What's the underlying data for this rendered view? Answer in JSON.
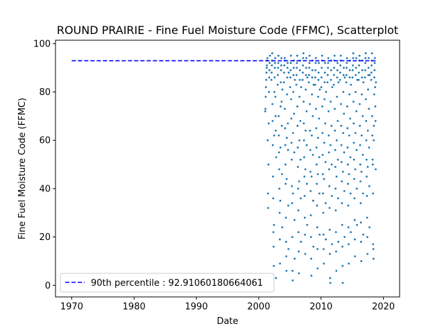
{
  "chart_data": {
    "type": "scatter",
    "title": "ROUND PRAIRIE - Fine Fuel Moisture Code (FFMC), Scatterplot",
    "xlabel": "Date",
    "ylabel": "Fine Fuel Moisture Code (FFMC)",
    "xlim": [
      1967.4,
      2022.6
    ],
    "ylim": [
      -4.8,
      101.4
    ],
    "xticks": [
      1970,
      1980,
      1990,
      2000,
      2010,
      2020
    ],
    "yticks": [
      0,
      20,
      40,
      60,
      80,
      100
    ],
    "grid": false,
    "legend_position": "lower-left",
    "reference_line": {
      "label": "90th percentile : 92.91060180664061",
      "y": 92.91060180664061,
      "x_start": 1970,
      "x_end": 2019,
      "color": "#0000ff",
      "style": "dashed"
    },
    "series": [
      {
        "color": "#1f77b4",
        "seasons": [
          {
            "year": 2001,
            "values": [
              72,
              73,
              78,
              82,
              85,
              88,
              90,
              91,
              93,
              94,
              60,
              38,
              32,
              50,
              67,
              80,
              86,
              89,
              92,
              95
            ]
          },
          {
            "year": 2002,
            "values": [
              85,
              88,
              91,
              93,
              96,
              75,
              68,
              58,
              45,
              36,
              22,
              16,
              8,
              25,
              62,
              80,
              86,
              90,
              92,
              94,
              78,
              70,
              64,
              3,
              53
            ]
          },
          {
            "year": 2003,
            "values": [
              83,
              87,
              90,
              92,
              95,
              70,
              62,
              55,
              48,
              40,
              30,
              19,
              9,
              35,
              57,
              74,
              84,
              89,
              91,
              94,
              76,
              66,
              46,
              24,
              81
            ]
          },
          {
            "year": 2004,
            "values": [
              84,
              88,
              91,
              93,
              94,
              73,
              65,
              58,
              50,
              42,
              28,
              18,
              12,
              6,
              44,
              61,
              79,
              86,
              90,
              92,
              67,
              56,
              33,
              15,
              88
            ]
          },
          {
            "year": 2005,
            "values": [
              82,
              86,
              89,
              92,
              95,
              77,
              69,
              59,
              52,
              41,
              34,
              20,
              6,
              2,
              38,
              63,
              80,
              87,
              90,
              93,
              71,
              55,
              27,
              11,
              85
            ]
          },
          {
            "year": 2006,
            "values": [
              83,
              87,
              90,
              92,
              95,
              74,
              66,
              57,
              49,
              40,
              31,
              22,
              14,
              5,
              43,
              60,
              78,
              85,
              89,
              93,
              68,
              52,
              36,
              18,
              82
            ]
          },
          {
            "year": 2007,
            "values": [
              85,
              88,
              91,
              94,
              96,
              76,
              67,
              60,
              53,
              45,
              37,
              28,
              21,
              13,
              48,
              64,
              81,
              87,
              90,
              94,
              72,
              58,
              42,
              25,
              86
            ]
          },
          {
            "year": 2008,
            "values": [
              84,
              87,
              90,
              92,
              95,
              75,
              64,
              56,
              47,
              39,
              29,
              20,
              11,
              4,
              45,
              62,
              79,
              86,
              89,
              93,
              70,
              54,
              35,
              16,
              83
            ]
          },
          {
            "year": 2009,
            "values": [
              83,
              86,
              89,
              92,
              94,
              73,
              65,
              57,
              50,
              42,
              33,
              24,
              15,
              7,
              46,
              61,
              78,
              85,
              88,
              92,
              69,
              53,
              38,
              21,
              81
            ]
          },
          {
            "year": 2010,
            "values": [
              82,
              86,
              90,
              93,
              95,
              74,
              63,
              54,
              46,
              38,
              30,
              21,
              15,
              9,
              44,
              59,
              77,
              84,
              88,
              92,
              67,
              51,
              34,
              19,
              80
            ]
          },
          {
            "year": 2011,
            "values": [
              84,
              87,
              90,
              92,
              94,
              72,
              62,
              55,
              48,
              41,
              32,
              23,
              13,
              3,
              1,
              58,
              76,
              85,
              89,
              93,
              66,
              50,
              37,
              17,
              82
            ]
          },
          {
            "year": 2012,
            "values": [
              83,
              87,
              90,
              93,
              95,
              73,
              64,
              56,
              49,
              40,
              31,
              22,
              14,
              6,
              45,
              60,
              78,
              86,
              89,
              92,
              68,
              52,
              36,
              18,
              84
            ]
          },
          {
            "year": 2013,
            "values": [
              85,
              88,
              91,
              93,
              95,
              75,
              66,
              58,
              51,
              43,
              34,
              25,
              16,
              8,
              1,
              47,
              63,
              80,
              87,
              90,
              71,
              55,
              39,
              20,
              86
            ]
          },
          {
            "year": 2014,
            "values": [
              84,
              87,
              90,
              92,
              94,
              74,
              65,
              57,
              50,
              42,
              33,
              24,
              17,
              9,
              46,
              62,
              79,
              86,
              89,
              93,
              69,
              53,
              38,
              22,
              83
            ]
          },
          {
            "year": 2015,
            "values": [
              86,
              89,
              91,
              94,
              96,
              76,
              67,
              59,
              52,
              44,
              36,
              27,
              19,
              12,
              48,
              63,
              80,
              87,
              90,
              94,
              72,
              56,
              40,
              25,
              85
            ]
          },
          {
            "year": 2016,
            "values": [
              85,
              88,
              91,
              93,
              95,
              75,
              66,
              58,
              50,
              43,
              34,
              26,
              18,
              10,
              47,
              62,
              79,
              86,
              89,
              93,
              70,
              54,
              38,
              21,
              84
            ]
          },
          {
            "year": 2017,
            "values": [
              86,
              89,
              92,
              94,
              96,
              77,
              68,
              60,
              52,
              45,
              37,
              28,
              20,
              13,
              49,
              64,
              81,
              87,
              90,
              94,
              73,
              57,
              41,
              24,
              87
            ]
          },
          {
            "year": 2018,
            "values": [
              85,
              88,
              91,
              93,
              96,
              70,
              62,
              52,
              50,
              38,
              17,
              15,
              11,
              60,
              66,
              79,
              86,
              89,
              92,
              94,
              82,
              74,
              68,
              48,
              84
            ]
          }
        ]
      }
    ]
  }
}
